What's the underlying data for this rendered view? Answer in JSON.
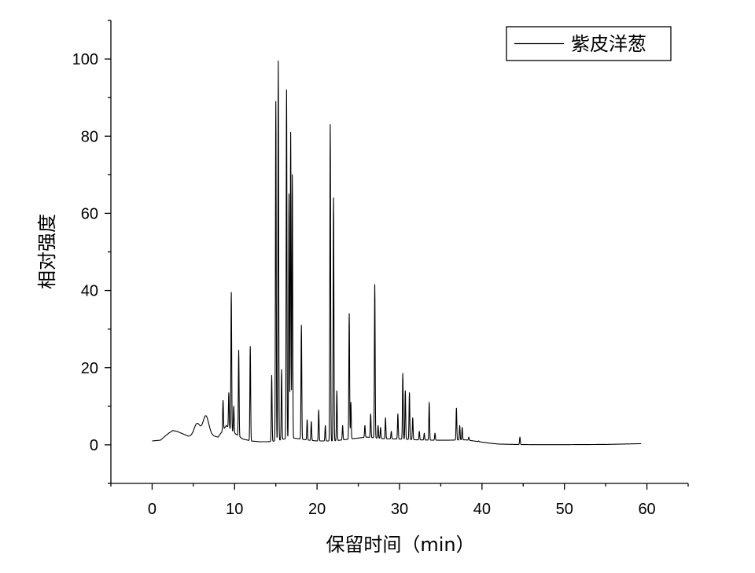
{
  "chart_data": {
    "type": "line",
    "xlabel": "保留时间（min）",
    "ylabel": "相对强度",
    "xlim": [
      -5,
      65
    ],
    "ylim": [
      -10,
      110
    ],
    "xticks": [
      0,
      10,
      20,
      30,
      40,
      50,
      60
    ],
    "xtick_labels": [
      "0",
      "10",
      "20",
      "30",
      "40",
      "50",
      "60"
    ],
    "yticks": [
      0,
      20,
      40,
      60,
      80,
      100
    ],
    "ytick_labels": [
      "0",
      "20",
      "40",
      "60",
      "80",
      "100"
    ],
    "grid": false,
    "legend_position": "top-right",
    "line_color": "#000000",
    "series": [
      {
        "name": "紫皮洋葱",
        "baseline": [
          [
            0.0,
            1.0
          ],
          [
            1.0,
            1.2
          ],
          [
            2.0,
            3.0
          ],
          [
            2.5,
            3.7
          ],
          [
            3.0,
            3.5
          ],
          [
            4.0,
            2.6
          ],
          [
            4.5,
            2.0
          ],
          [
            5.0,
            1.5
          ],
          [
            6.0,
            2.0
          ],
          [
            7.0,
            2.5
          ],
          [
            8.0,
            2.0
          ],
          [
            9.0,
            5.0
          ],
          [
            10.0,
            3.0
          ],
          [
            11.0,
            1.5
          ],
          [
            12.0,
            1.0
          ],
          [
            13.0,
            0.8
          ],
          [
            14.0,
            0.8
          ],
          [
            15.0,
            1.0
          ],
          [
            16.0,
            1.5
          ],
          [
            17.0,
            1.8
          ],
          [
            18.0,
            1.5
          ],
          [
            19.0,
            1.2
          ],
          [
            20.0,
            1.0
          ],
          [
            22.0,
            1.0
          ],
          [
            24.0,
            1.5
          ],
          [
            26.0,
            2.0
          ],
          [
            28.0,
            1.6
          ],
          [
            30.0,
            1.5
          ],
          [
            32.0,
            1.3
          ],
          [
            34.0,
            1.2
          ],
          [
            36.0,
            1.2
          ],
          [
            38.0,
            1.3
          ],
          [
            39.0,
            1.0
          ],
          [
            40.0,
            0.7
          ],
          [
            41.0,
            0.4
          ],
          [
            42.0,
            0.2
          ],
          [
            44.0,
            0.1
          ],
          [
            46.0,
            0.05
          ],
          [
            50.0,
            0.05
          ],
          [
            55.0,
            0.1
          ],
          [
            59.3,
            0.3
          ]
        ],
        "peaks": [
          [
            2.5,
            3.7
          ],
          [
            5.1,
            2.5
          ],
          [
            5.5,
            5.0
          ],
          [
            6.5,
            7.5
          ],
          [
            8.6,
            11.5
          ],
          [
            9.3,
            13.5
          ],
          [
            9.6,
            39.5
          ],
          [
            9.9,
            10.0
          ],
          [
            10.5,
            24.5
          ],
          [
            11.9,
            25.5
          ],
          [
            14.5,
            18.0
          ],
          [
            15.0,
            89.0
          ],
          [
            15.3,
            99.5
          ],
          [
            15.7,
            19.5
          ],
          [
            16.3,
            92.0
          ],
          [
            16.6,
            65.0
          ],
          [
            16.8,
            81.0
          ],
          [
            17.0,
            70.0
          ],
          [
            18.1,
            31.0
          ],
          [
            18.8,
            6.5
          ],
          [
            19.3,
            6.0
          ],
          [
            20.2,
            9.0
          ],
          [
            21.0,
            5.0
          ],
          [
            21.6,
            83.0
          ],
          [
            22.0,
            64.0
          ],
          [
            22.4,
            14.0
          ],
          [
            23.1,
            5.0
          ],
          [
            23.9,
            34.0
          ],
          [
            24.1,
            11.0
          ],
          [
            25.8,
            5.0
          ],
          [
            26.5,
            8.0
          ],
          [
            27.0,
            41.5
          ],
          [
            27.4,
            5.0
          ],
          [
            27.7,
            4.5
          ],
          [
            28.3,
            7.0
          ],
          [
            29.0,
            3.5
          ],
          [
            29.8,
            8.0
          ],
          [
            30.4,
            18.5
          ],
          [
            30.7,
            14.0
          ],
          [
            31.2,
            13.5
          ],
          [
            31.6,
            7.0
          ],
          [
            32.4,
            3.5
          ],
          [
            33.0,
            3.0
          ],
          [
            33.6,
            11.0
          ],
          [
            34.3,
            3.0
          ],
          [
            36.9,
            9.5
          ],
          [
            37.3,
            5.0
          ],
          [
            37.6,
            4.5
          ],
          [
            38.4,
            2.0
          ],
          [
            39.6,
            1.0
          ],
          [
            44.6,
            2.0
          ]
        ]
      }
    ]
  }
}
